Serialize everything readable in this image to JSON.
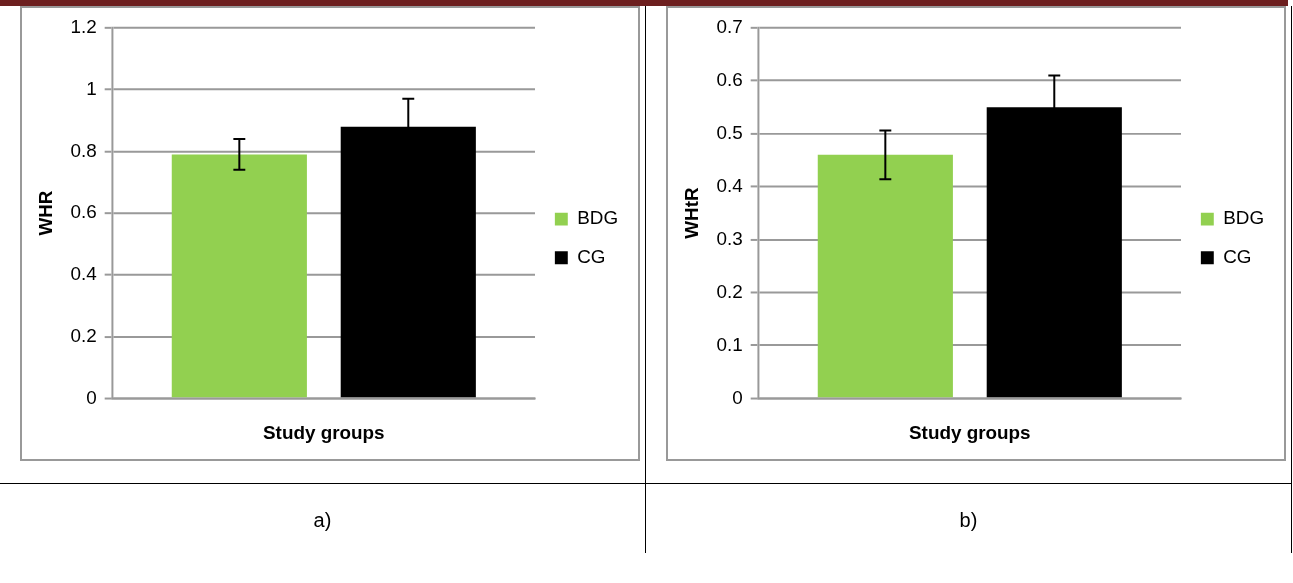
{
  "chart_data": [
    {
      "type": "bar",
      "ylabel": "WHR",
      "xlabel": "Study groups",
      "categories": [
        null
      ],
      "ylim": [
        0,
        1.2
      ],
      "yticks": [
        0,
        0.2,
        0.4,
        0.6,
        0.8,
        1,
        1.2
      ],
      "grid": "y",
      "legend": "right",
      "annotations": [
        "a)"
      ],
      "series": [
        {
          "name": "BDG",
          "color": "#92d050",
          "values": [
            0.79
          ],
          "errors": [
            0.05
          ]
        },
        {
          "name": "CG",
          "color": "#000000",
          "values": [
            0.88
          ],
          "errors": [
            0.09
          ]
        }
      ]
    },
    {
      "type": "bar",
      "ylabel": "WHtR",
      "xlabel": "Study groups",
      "categories": [
        null
      ],
      "ylim": [
        0,
        0.7
      ],
      "yticks": [
        0,
        0.1,
        0.2,
        0.3,
        0.4,
        0.5,
        0.6,
        0.7
      ],
      "grid": "y",
      "legend": "right",
      "annotations": [
        "b)"
      ],
      "series": [
        {
          "name": "BDG",
          "color": "#92d050",
          "values": [
            0.46
          ],
          "errors": [
            0.046
          ]
        },
        {
          "name": "CG",
          "color": "#000000",
          "values": [
            0.55
          ],
          "errors": [
            0.06
          ]
        }
      ]
    }
  ]
}
